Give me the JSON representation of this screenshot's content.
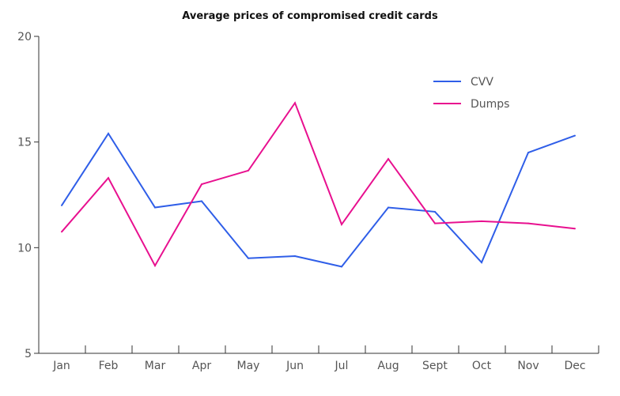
{
  "chart_data": {
    "type": "line",
    "title": "Average prices of compromised credit cards",
    "categories": [
      "Jan",
      "Feb",
      "Mar",
      "Apr",
      "May",
      "Jun",
      "Jul",
      "Aug",
      "Sept",
      "Oct",
      "Nov",
      "Dec"
    ],
    "series": [
      {
        "name": "CVV",
        "color": "#2f5ee8",
        "values": [
          12.0,
          15.4,
          11.9,
          12.2,
          9.5,
          9.6,
          9.1,
          11.9,
          11.7,
          9.3,
          14.5,
          15.3
        ]
      },
      {
        "name": "Dumps",
        "color": "#e8108f",
        "values": [
          10.75,
          13.3,
          9.15,
          13.0,
          13.65,
          16.85,
          11.1,
          14.2,
          11.15,
          11.25,
          11.15,
          10.9
        ]
      }
    ],
    "xlabel": "",
    "ylabel": "",
    "ylim": [
      5,
      20
    ],
    "yticks": [
      5,
      10,
      15,
      20
    ],
    "grid": false,
    "legend": "top-right"
  }
}
